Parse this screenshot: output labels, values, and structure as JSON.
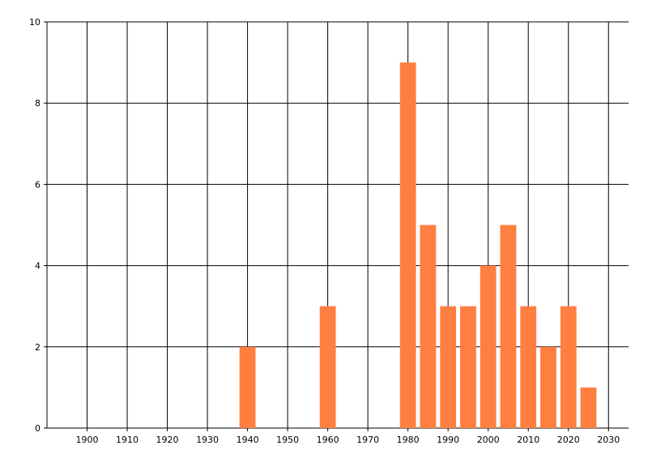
{
  "chart_data": {
    "type": "bar",
    "x": [
      1940,
      1960,
      1980,
      1985,
      1990,
      1995,
      2000,
      2005,
      2010,
      2015,
      2020,
      2025
    ],
    "values": [
      2,
      3,
      9,
      5,
      3,
      3,
      4,
      5,
      3,
      2,
      3,
      1
    ],
    "color": "#ff7f41",
    "xlim": [
      1890,
      2035
    ],
    "xticks": [
      1900,
      1910,
      1920,
      1930,
      1940,
      1950,
      1960,
      1970,
      1980,
      1990,
      2000,
      2010,
      2020,
      2030
    ],
    "ylim": [
      0,
      10
    ],
    "yticks": [
      0,
      2,
      4,
      6,
      8,
      10
    ],
    "grid": true
  }
}
